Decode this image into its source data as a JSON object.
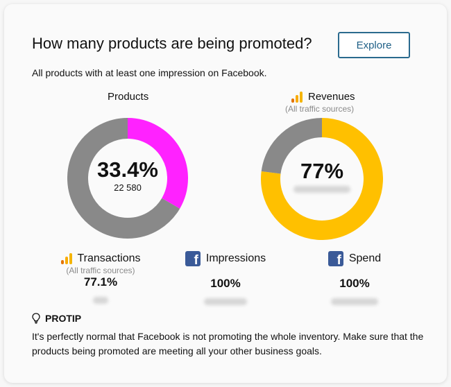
{
  "header": {
    "title": "How many products are being promoted?",
    "explore_label": "Explore",
    "subtitle": "All products with at least one impression on Facebook."
  },
  "products_chart": {
    "title": "Products",
    "percent_label": "33.4%",
    "count": "22 580",
    "percent": 33.4,
    "colors": {
      "fill": "#ff22ff",
      "rest": "#898989"
    }
  },
  "revenues_chart": {
    "title": "Revenues",
    "sub": "(All traffic sources)",
    "percent_label": "77%",
    "percent": 77,
    "colors": {
      "fill": "#ffc000",
      "rest": "#898989"
    }
  },
  "metrics": {
    "transactions": {
      "label": "Transactions",
      "sub": "(All traffic sources)",
      "value": "77.1%"
    },
    "impressions": {
      "label": "Impressions",
      "value": "100%"
    },
    "spend": {
      "label": "Spend",
      "value": "100%"
    }
  },
  "protip": {
    "label": "PROTIP",
    "text": "It's perfectly normal that Facebook is not promoting the whole inventory. Make sure that the products being promoted are meeting all your other business goals."
  },
  "icons": {
    "facebook": "facebook-icon",
    "analytics": "analytics-icon",
    "lightbulb": "lightbulb-icon"
  }
}
